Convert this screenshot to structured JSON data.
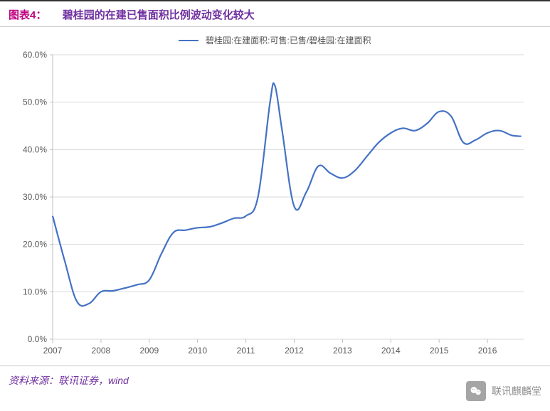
{
  "header": {
    "label": "图表4：",
    "title": "碧桂园的在建已售面积比例波动变化较大"
  },
  "legend": {
    "text": "碧桂园:在建面积:可售:已售/碧桂园:在建面积",
    "color": "#4472c4"
  },
  "chart": {
    "type": "line",
    "series_color": "#4472c4",
    "line_width": 2.2,
    "background_color": "#ffffff",
    "grid_color": "#d9d9d9",
    "axis_color": "#bfbfbf",
    "label_color": "#595959",
    "label_fontsize": 12,
    "ylim": [
      0,
      60
    ],
    "ytick_step": 10,
    "ytick_format": "percent_one_decimal",
    "yticks": [
      "0.0%",
      "10.0%",
      "20.0%",
      "30.0%",
      "40.0%",
      "50.0%",
      "60.0%"
    ],
    "xlim": [
      2007,
      2016.75
    ],
    "xticks": [
      2007,
      2008,
      2009,
      2010,
      2011,
      2012,
      2013,
      2014,
      2015,
      2016
    ],
    "xtick_labels": [
      "2007",
      "2008",
      "2009",
      "2010",
      "2011",
      "2012",
      "2013",
      "2014",
      "2015",
      "2016"
    ],
    "data": [
      {
        "x": 2007.0,
        "y": 26.0
      },
      {
        "x": 2007.25,
        "y": 16.5
      },
      {
        "x": 2007.5,
        "y": 8.0
      },
      {
        "x": 2007.75,
        "y": 7.5
      },
      {
        "x": 2008.0,
        "y": 10.0
      },
      {
        "x": 2008.25,
        "y": 10.2
      },
      {
        "x": 2008.5,
        "y": 10.8
      },
      {
        "x": 2008.75,
        "y": 11.5
      },
      {
        "x": 2009.0,
        "y": 12.5
      },
      {
        "x": 2009.25,
        "y": 18.0
      },
      {
        "x": 2009.5,
        "y": 22.5
      },
      {
        "x": 2009.75,
        "y": 23.0
      },
      {
        "x": 2010.0,
        "y": 23.5
      },
      {
        "x": 2010.25,
        "y": 23.7
      },
      {
        "x": 2010.5,
        "y": 24.5
      },
      {
        "x": 2010.75,
        "y": 25.5
      },
      {
        "x": 2011.0,
        "y": 26.0
      },
      {
        "x": 2011.25,
        "y": 30.0
      },
      {
        "x": 2011.5,
        "y": 50.0
      },
      {
        "x": 2011.6,
        "y": 53.5
      },
      {
        "x": 2011.75,
        "y": 44.0
      },
      {
        "x": 2012.0,
        "y": 28.0
      },
      {
        "x": 2012.25,
        "y": 31.0
      },
      {
        "x": 2012.5,
        "y": 36.5
      },
      {
        "x": 2012.75,
        "y": 35.0
      },
      {
        "x": 2013.0,
        "y": 34.0
      },
      {
        "x": 2013.25,
        "y": 35.5
      },
      {
        "x": 2013.5,
        "y": 38.5
      },
      {
        "x": 2013.75,
        "y": 41.5
      },
      {
        "x": 2014.0,
        "y": 43.5
      },
      {
        "x": 2014.25,
        "y": 44.5
      },
      {
        "x": 2014.5,
        "y": 44.0
      },
      {
        "x": 2014.75,
        "y": 45.5
      },
      {
        "x": 2015.0,
        "y": 48.0
      },
      {
        "x": 2015.25,
        "y": 47.0
      },
      {
        "x": 2015.5,
        "y": 41.5
      },
      {
        "x": 2015.75,
        "y": 42.0
      },
      {
        "x": 2016.0,
        "y": 43.5
      },
      {
        "x": 2016.25,
        "y": 44.0
      },
      {
        "x": 2016.5,
        "y": 43.0
      },
      {
        "x": 2016.7,
        "y": 42.8
      }
    ]
  },
  "footer": {
    "source": "资料来源：联讯证券，wind"
  },
  "watermark": {
    "text": "联讯麒麟堂"
  },
  "colors": {
    "title_label": "#c00080",
    "title_text": "#7030a0",
    "footer_text": "#7030a0"
  }
}
